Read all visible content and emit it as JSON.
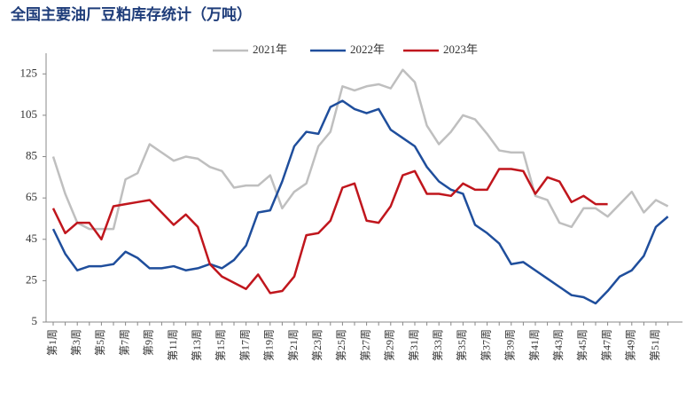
{
  "chart_data": {
    "type": "line",
    "title": "全国主要油厂豆粕库存统计（万吨）",
    "categories": [
      "第1周",
      null,
      "第3周",
      null,
      "第5周",
      null,
      "第7周",
      null,
      "第9周",
      null,
      "第11周",
      null,
      "第13周",
      null,
      "第15周",
      null,
      "第17周",
      null,
      "第19周",
      null,
      "第21周",
      null,
      "第23周",
      null,
      "第25周",
      null,
      "第27周",
      null,
      "第29周",
      null,
      "第31周",
      null,
      "第33周",
      null,
      "第35周",
      null,
      "第37周",
      null,
      "第39周",
      null,
      "第41周",
      null,
      "第43周",
      null,
      "第45周",
      null,
      "第47周",
      null,
      "第49周",
      null,
      "第51周",
      null
    ],
    "series": [
      {
        "name": "2021年",
        "color": "#bfbfbf",
        "values": [
          85,
          67,
          53,
          50,
          50,
          50,
          74,
          77,
          91,
          87,
          83,
          85,
          84,
          80,
          78,
          70,
          71,
          71,
          76,
          60,
          68,
          72,
          90,
          97,
          119,
          117,
          119,
          120,
          118,
          127,
          121,
          100,
          91,
          97,
          105,
          103,
          96,
          88,
          87,
          87,
          66,
          64,
          53,
          51,
          60,
          60,
          56,
          62,
          68,
          58,
          64,
          61
        ]
      },
      {
        "name": "2022年",
        "color": "#1f4e9c",
        "values": [
          50,
          38,
          30,
          32,
          32,
          33,
          39,
          36,
          31,
          31,
          32,
          30,
          31,
          33,
          31,
          35,
          42,
          58,
          59,
          73,
          90,
          97,
          96,
          109,
          112,
          108,
          106,
          108,
          98,
          94,
          90,
          80,
          73,
          69,
          67,
          52,
          48,
          43,
          33,
          34,
          30,
          26,
          22,
          18,
          17,
          14,
          20,
          27,
          30,
          37,
          51,
          56
        ]
      },
      {
        "name": "2023年",
        "color": "#c0161d",
        "values": [
          60,
          48,
          53,
          53,
          45,
          61,
          62,
          63,
          64,
          58,
          52,
          57,
          51,
          33,
          27,
          24,
          21,
          28,
          19,
          20,
          27,
          47,
          48,
          54,
          70,
          72,
          54,
          53,
          61,
          76,
          78,
          67,
          67,
          66,
          72,
          69,
          69,
          79,
          79,
          78,
          67,
          75,
          73,
          63,
          66,
          62,
          62,
          null,
          null,
          null,
          null,
          null
        ]
      }
    ],
    "ylim": [
      5,
      135
    ],
    "yticks": [
      5,
      25,
      45,
      65,
      85,
      105,
      125
    ],
    "grid": false,
    "legend": "top"
  }
}
